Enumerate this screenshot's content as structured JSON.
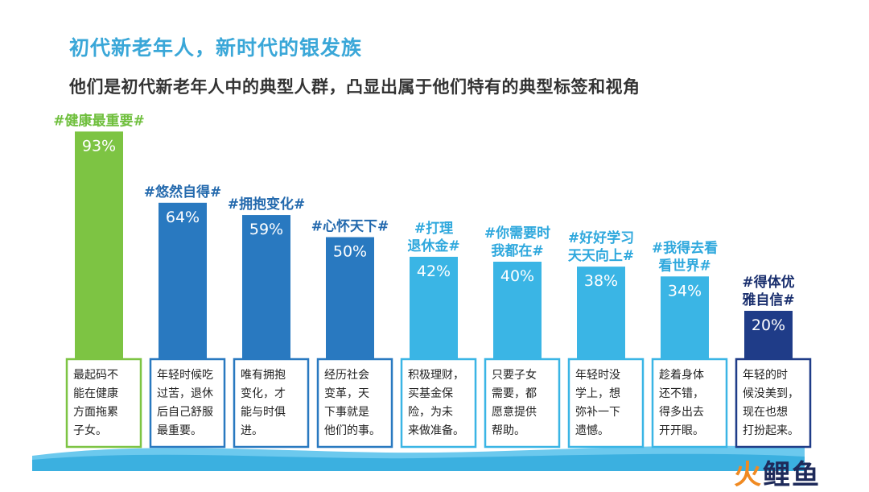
{
  "title": "初代新老年人，新时代的银发族",
  "subtitle": "他们是初代新老年人中的典型人群，凸显出属于他们特有的典型标签和视角",
  "watermark": "火鲤鱼",
  "chart_data": {
    "type": "bar",
    "unit": "%",
    "ylim": [
      0,
      100
    ],
    "categories": [
      [
        "#健康最重要#"
      ],
      [
        "#悠然自得#"
      ],
      [
        "#拥抱变化#"
      ],
      [
        "#心怀天下#"
      ],
      [
        "#打理",
        "退休金#"
      ],
      [
        "#你需要时",
        "我都在#"
      ],
      [
        "#好好学习",
        "天天向上#"
      ],
      [
        "#我得去看",
        "看世界#"
      ],
      [
        "#得体优",
        "雅自信#"
      ]
    ],
    "values": [
      93,
      64,
      59,
      50,
      42,
      40,
      38,
      34,
      20
    ],
    "value_labels": [
      "93%",
      "64%",
      "59%",
      "50%",
      "42%",
      "40%",
      "38%",
      "34%",
      "20%"
    ],
    "descriptions": [
      [
        "最起码不",
        "能在健康",
        "方面拖累",
        "子女。"
      ],
      [
        "年轻时候吃",
        "过苦，退休",
        "后自己舒服",
        "最重要。"
      ],
      [
        "唯有拥抱",
        "变化，才",
        "能与时俱",
        "进。"
      ],
      [
        "经历社会",
        "变革，天",
        "下事就是",
        "他们的事。"
      ],
      [
        "积极理财，",
        "买基金保",
        "险，为未",
        "来做准备。"
      ],
      [
        "只要子女",
        "需要，都",
        "愿意提供",
        "帮助。"
      ],
      [
        "年轻时没",
        "学上，想",
        "弥补一下",
        "遗憾。"
      ],
      [
        "趁着身体",
        "还不错，",
        "得多出去",
        "开开眼。"
      ],
      [
        "年轻的时",
        "候没美到，",
        "现在也想",
        "打扮起来。"
      ]
    ],
    "colors": {
      "bars": [
        "#7dc443",
        "#2979c0",
        "#2979c0",
        "#2979c0",
        "#3ab5e5",
        "#3ab5e5",
        "#3ab5e5",
        "#3ab5e5",
        "#1f3c88"
      ],
      "tags": [
        "#6fbf3d",
        "#2369ad",
        "#2369ad",
        "#2369ad",
        "#2fa8dd",
        "#2fa8dd",
        "#2fa8dd",
        "#2fa8dd",
        "#1a2f6e"
      ],
      "wave": [
        "#3bb0e0",
        "#6cc9ee"
      ],
      "watermark": [
        "#f08a22",
        "#1e2a5a"
      ]
    }
  }
}
